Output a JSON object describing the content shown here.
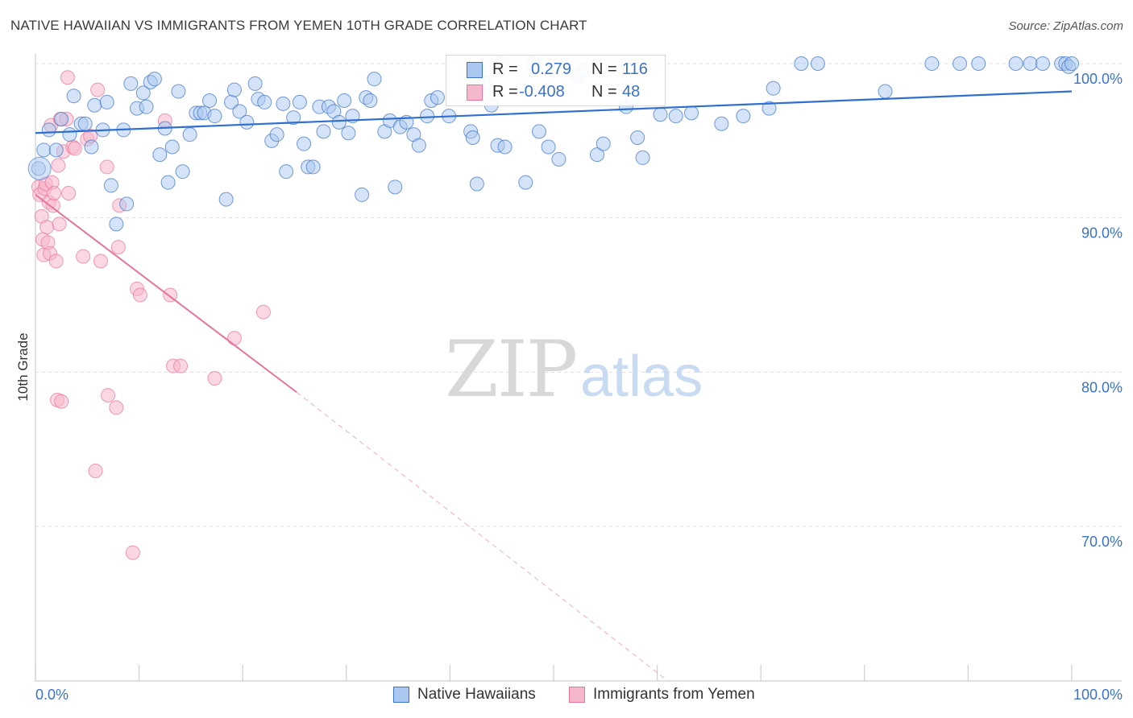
{
  "title": "NATIVE HAWAIIAN VS IMMIGRANTS FROM YEMEN 10TH GRADE CORRELATION CHART",
  "source": "Source: ZipAtlas.com",
  "watermark": {
    "zip": "ZIP",
    "atlas": "atlas"
  },
  "colors": {
    "blue": "#3a72c9",
    "blue_fill": "#aac8ef",
    "blue_line": "#2e6fcf",
    "pink": "#e8739a",
    "pink_fill": "#f5b7cb",
    "pink_line": "#e8739a",
    "grid": "#dedede",
    "axis_text": "#3a72c9"
  },
  "legend": {
    "rows": [
      {
        "r_label": "R =",
        "r_value": "0.279",
        "n_label": "N =",
        "n_value": "116"
      },
      {
        "r_label": "R =",
        "r_value": "-0.408",
        "n_label": "N =",
        "n_value": "48"
      }
    ]
  },
  "bottom_legend": [
    "Native Hawaiians",
    "Immigrants from Yemen"
  ],
  "chart_data": {
    "type": "scatter",
    "title": "NATIVE HAWAIIAN VS IMMIGRANTS FROM YEMEN 10TH GRADE CORRELATION CHART",
    "xlabel": "",
    "ylabel": "10th Grade",
    "xlim": [
      0,
      100
    ],
    "ylim": [
      60,
      101
    ],
    "x_tick_labels": [
      "0.0%",
      "100.0%"
    ],
    "y_ticks": [
      70,
      80,
      90,
      100
    ],
    "y_tick_labels": [
      "70.0%",
      "80.0%",
      "90.0%",
      "100.0%"
    ],
    "grid": true,
    "series": [
      {
        "name": "Native Hawaiians",
        "R": 0.279,
        "N": 116,
        "trend": {
          "x0": 0,
          "y0": 95.5,
          "x1": 100,
          "y1": 98.2
        },
        "points": [
          [
            0.3,
            93.2
          ],
          [
            0.8,
            94.4
          ],
          [
            1.3,
            95.7
          ],
          [
            2.0,
            94.4
          ],
          [
            2.5,
            96.4
          ],
          [
            3.3,
            95.4
          ],
          [
            3.7,
            97.9
          ],
          [
            4.4,
            96.1
          ],
          [
            4.8,
            96.1
          ],
          [
            5.4,
            94.6
          ],
          [
            5.7,
            97.3
          ],
          [
            6.5,
            95.7
          ],
          [
            6.9,
            97.5
          ],
          [
            7.3,
            92.1
          ],
          [
            7.8,
            89.6
          ],
          [
            8.5,
            95.7
          ],
          [
            8.8,
            90.9
          ],
          [
            9.2,
            98.7
          ],
          [
            9.8,
            97.1
          ],
          [
            10.4,
            98.1
          ],
          [
            10.7,
            97.2
          ],
          [
            11.1,
            98.8
          ],
          [
            11.5,
            99.0
          ],
          [
            12.0,
            94.1
          ],
          [
            12.5,
            95.8
          ],
          [
            12.8,
            92.3
          ],
          [
            13.2,
            94.6
          ],
          [
            13.8,
            98.2
          ],
          [
            14.2,
            93.0
          ],
          [
            14.9,
            95.4
          ],
          [
            15.5,
            96.8
          ],
          [
            15.9,
            96.8
          ],
          [
            16.3,
            96.8
          ],
          [
            16.8,
            97.6
          ],
          [
            17.3,
            96.6
          ],
          [
            18.4,
            91.2
          ],
          [
            18.9,
            97.5
          ],
          [
            19.2,
            98.3
          ],
          [
            19.7,
            96.9
          ],
          [
            20.4,
            96.2
          ],
          [
            21.2,
            98.7
          ],
          [
            21.5,
            97.7
          ],
          [
            22.1,
            97.5
          ],
          [
            22.8,
            95.0
          ],
          [
            23.3,
            95.4
          ],
          [
            23.9,
            97.4
          ],
          [
            24.2,
            93.0
          ],
          [
            24.9,
            96.5
          ],
          [
            25.5,
            97.5
          ],
          [
            25.9,
            94.8
          ],
          [
            26.3,
            93.3
          ],
          [
            26.8,
            93.3
          ],
          [
            27.4,
            97.2
          ],
          [
            27.8,
            95.6
          ],
          [
            28.3,
            97.2
          ],
          [
            28.8,
            96.9
          ],
          [
            29.3,
            96.2
          ],
          [
            29.8,
            97.6
          ],
          [
            30.2,
            95.5
          ],
          [
            30.6,
            96.6
          ],
          [
            31.5,
            91.5
          ],
          [
            31.9,
            97.8
          ],
          [
            32.3,
            97.6
          ],
          [
            32.7,
            99.0
          ],
          [
            33.7,
            95.6
          ],
          [
            34.2,
            96.3
          ],
          [
            34.7,
            92.0
          ],
          [
            35.2,
            95.9
          ],
          [
            35.8,
            96.2
          ],
          [
            36.5,
            95.4
          ],
          [
            37.0,
            94.7
          ],
          [
            37.8,
            96.6
          ],
          [
            38.2,
            97.6
          ],
          [
            38.8,
            97.8
          ],
          [
            39.9,
            96.6
          ],
          [
            42.0,
            95.6
          ],
          [
            42.2,
            95.2
          ],
          [
            42.6,
            92.2
          ],
          [
            43.5,
            98.7
          ],
          [
            44.0,
            97.3
          ],
          [
            44.6,
            94.7
          ],
          [
            45.3,
            94.6
          ],
          [
            47.3,
            92.3
          ],
          [
            48.6,
            95.6
          ],
          [
            49.5,
            94.6
          ],
          [
            50.5,
            93.8
          ],
          [
            52.4,
            99.2
          ],
          [
            53.0,
            99.6
          ],
          [
            54.2,
            94.1
          ],
          [
            54.8,
            94.8
          ],
          [
            57.0,
            97.2
          ],
          [
            57.6,
            97.7
          ],
          [
            58.1,
            95.2
          ],
          [
            58.6,
            93.9
          ],
          [
            60.3,
            96.7
          ],
          [
            61.8,
            96.6
          ],
          [
            63.3,
            96.8
          ],
          [
            66.2,
            96.1
          ],
          [
            68.3,
            96.6
          ],
          [
            70.8,
            97.1
          ],
          [
            71.2,
            98.4
          ],
          [
            73.9,
            100.0
          ],
          [
            75.5,
            100.0
          ],
          [
            82.0,
            98.2
          ],
          [
            86.5,
            100.0
          ],
          [
            89.2,
            100.0
          ],
          [
            91.0,
            100.0
          ],
          [
            94.6,
            100.0
          ],
          [
            96.0,
            100.0
          ],
          [
            97.2,
            100.0
          ],
          [
            99.0,
            100.0
          ],
          [
            99.4,
            100.0
          ],
          [
            99.7,
            99.8
          ],
          [
            100.0,
            100.0
          ],
          [
            45.0,
            100.0
          ],
          [
            48.0,
            100.0
          ]
        ]
      },
      {
        "name": "Immigrants from Yemen",
        "R": -0.408,
        "N": 48,
        "trend": {
          "x0": 0,
          "y0": 91.5,
          "x1": 25.2,
          "y1": 78.7,
          "dash_x1": 61,
          "dash_y1": 60
        },
        "points": [
          [
            0.3,
            92.0
          ],
          [
            0.4,
            91.5
          ],
          [
            0.6,
            90.1
          ],
          [
            0.7,
            88.6
          ],
          [
            0.8,
            87.6
          ],
          [
            0.9,
            91.9
          ],
          [
            1.0,
            92.2
          ],
          [
            1.1,
            89.4
          ],
          [
            1.2,
            88.4
          ],
          [
            1.3,
            91.0
          ],
          [
            1.4,
            87.7
          ],
          [
            1.5,
            96.0
          ],
          [
            1.6,
            92.3
          ],
          [
            1.7,
            90.8
          ],
          [
            1.8,
            91.6
          ],
          [
            2.0,
            87.2
          ],
          [
            2.1,
            78.2
          ],
          [
            2.2,
            93.4
          ],
          [
            2.3,
            89.6
          ],
          [
            2.4,
            96.4
          ],
          [
            2.5,
            78.1
          ],
          [
            2.7,
            94.3
          ],
          [
            3.0,
            96.4
          ],
          [
            3.2,
            91.6
          ],
          [
            3.1,
            99.1
          ],
          [
            3.6,
            94.6
          ],
          [
            3.8,
            94.5
          ],
          [
            4.6,
            87.5
          ],
          [
            5.0,
            95.1
          ],
          [
            5.3,
            95.3
          ],
          [
            6.0,
            98.3
          ],
          [
            6.3,
            87.2
          ],
          [
            6.9,
            93.3
          ],
          [
            7.0,
            78.5
          ],
          [
            7.8,
            77.7
          ],
          [
            8.0,
            88.1
          ],
          [
            8.1,
            90.8
          ],
          [
            9.4,
            68.3
          ],
          [
            9.8,
            85.4
          ],
          [
            10.1,
            85.0
          ],
          [
            12.5,
            96.3
          ],
          [
            13.0,
            85.0
          ],
          [
            13.3,
            80.4
          ],
          [
            14.0,
            80.4
          ],
          [
            17.3,
            79.6
          ],
          [
            19.2,
            82.2
          ],
          [
            22.0,
            83.9
          ],
          [
            5.8,
            73.6
          ]
        ]
      }
    ]
  }
}
